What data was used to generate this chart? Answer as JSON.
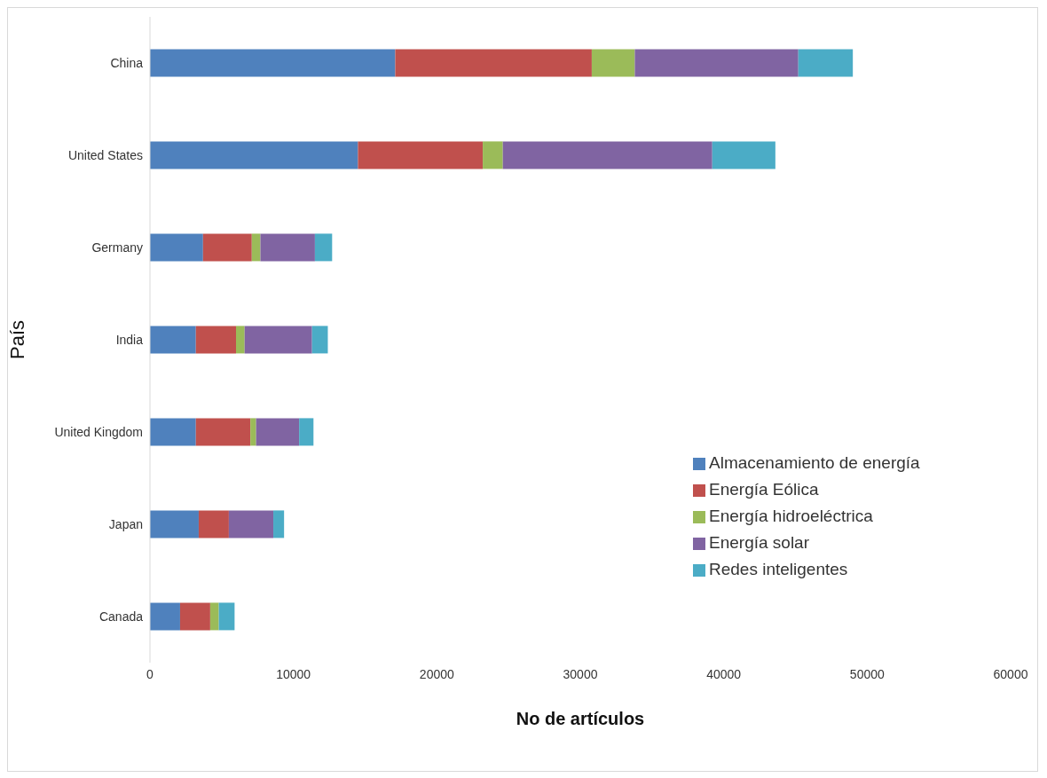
{
  "chart_data": {
    "type": "bar",
    "orientation": "horizontal",
    "stacked": true,
    "xlabel": "No de artículos",
    "ylabel": "País",
    "categories": [
      "China",
      "United States",
      "Germany",
      "India",
      "United Kingdom",
      "Japan",
      "Canada"
    ],
    "series": [
      {
        "name": "Almacenamiento de energía",
        "color": "#4f81bd",
        "values": [
          17100,
          14500,
          3700,
          3200,
          3200,
          3400,
          2100
        ]
      },
      {
        "name": "Energía Eólica",
        "color": "#c0504d",
        "values": [
          13700,
          8700,
          3400,
          2800,
          3800,
          2100,
          2100
        ]
      },
      {
        "name": "Energía hidroeléctrica",
        "color": "#9bbb59",
        "values": [
          3000,
          1400,
          600,
          600,
          400,
          0,
          600
        ]
      },
      {
        "name": "Energía solar",
        "color": "#8064a2",
        "values": [
          11400,
          14600,
          3800,
          4700,
          3000,
          3100,
          0
        ]
      },
      {
        "name": "Redes inteligentes",
        "color": "#4bacc6",
        "values": [
          3800,
          4400,
          1200,
          1100,
          1000,
          750,
          1100
        ]
      }
    ],
    "xlim": [
      0,
      60000
    ],
    "xticks": [
      0,
      10000,
      20000,
      30000,
      40000,
      50000,
      60000
    ],
    "grid": false,
    "legend": "bottom right"
  }
}
